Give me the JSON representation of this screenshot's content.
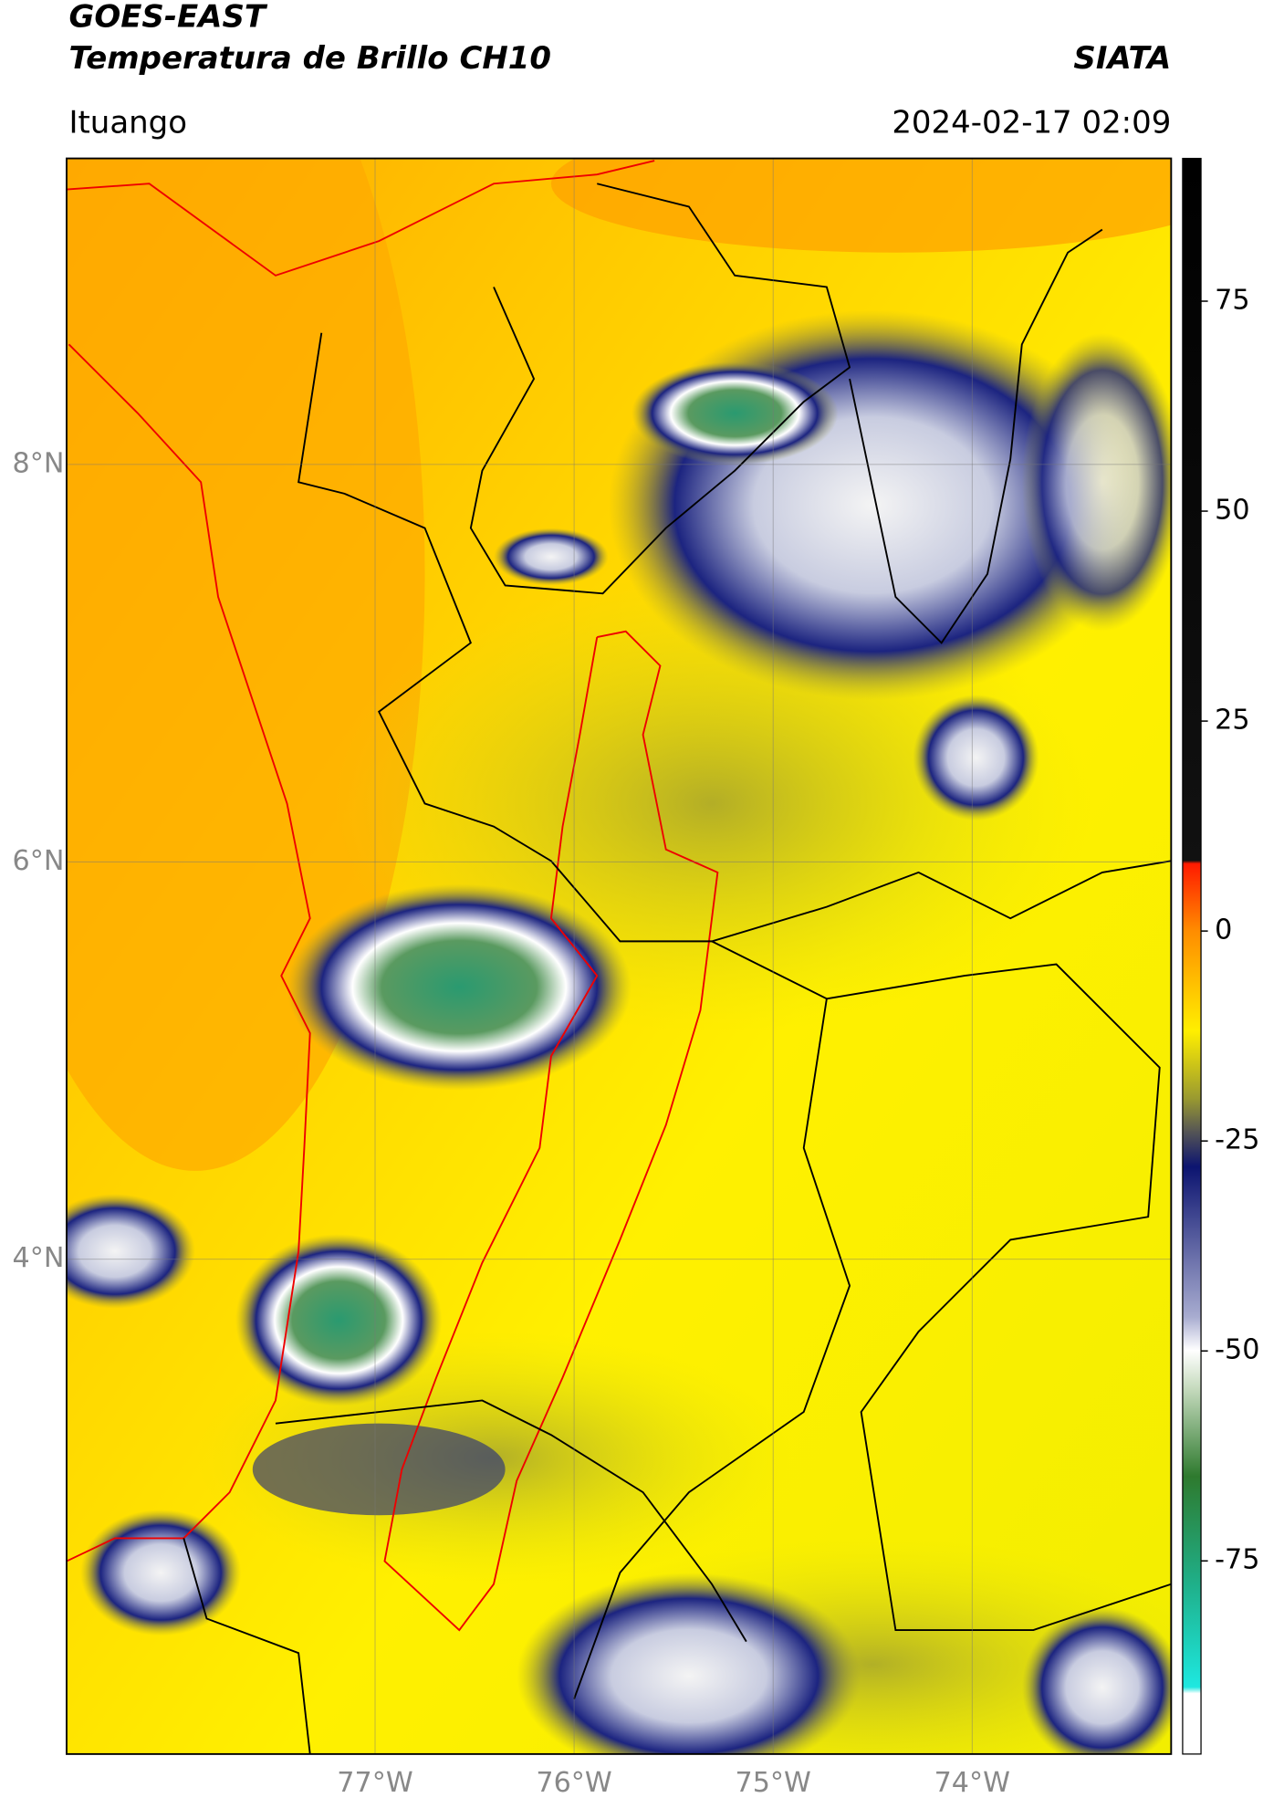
{
  "header": {
    "title": "GOES-EAST",
    "subtitle": "Temperatura de Brillo CH10",
    "brand": "SIATA",
    "location": "Ituango",
    "timestamp": "2024-02-17 02:09"
  },
  "chart_data": {
    "type": "map",
    "xlim": [
      -78.55,
      -73.0
    ],
    "ylim": [
      1.51,
      9.54
    ],
    "xticks": [
      {
        "value": -77,
        "label": "77°W"
      },
      {
        "value": -76,
        "label": "76°W"
      },
      {
        "value": -75,
        "label": "75°W"
      },
      {
        "value": -74,
        "label": "74°W"
      }
    ],
    "yticks": [
      {
        "value": 4,
        "label": "4°N"
      },
      {
        "value": 6,
        "label": "6°N"
      },
      {
        "value": 8,
        "label": "8°N"
      }
    ],
    "grid": true,
    "colorbar": {
      "lim": [
        -98,
        92
      ],
      "ticks": [
        -75,
        -50,
        -25,
        0,
        25,
        50,
        75
      ]
    }
  }
}
